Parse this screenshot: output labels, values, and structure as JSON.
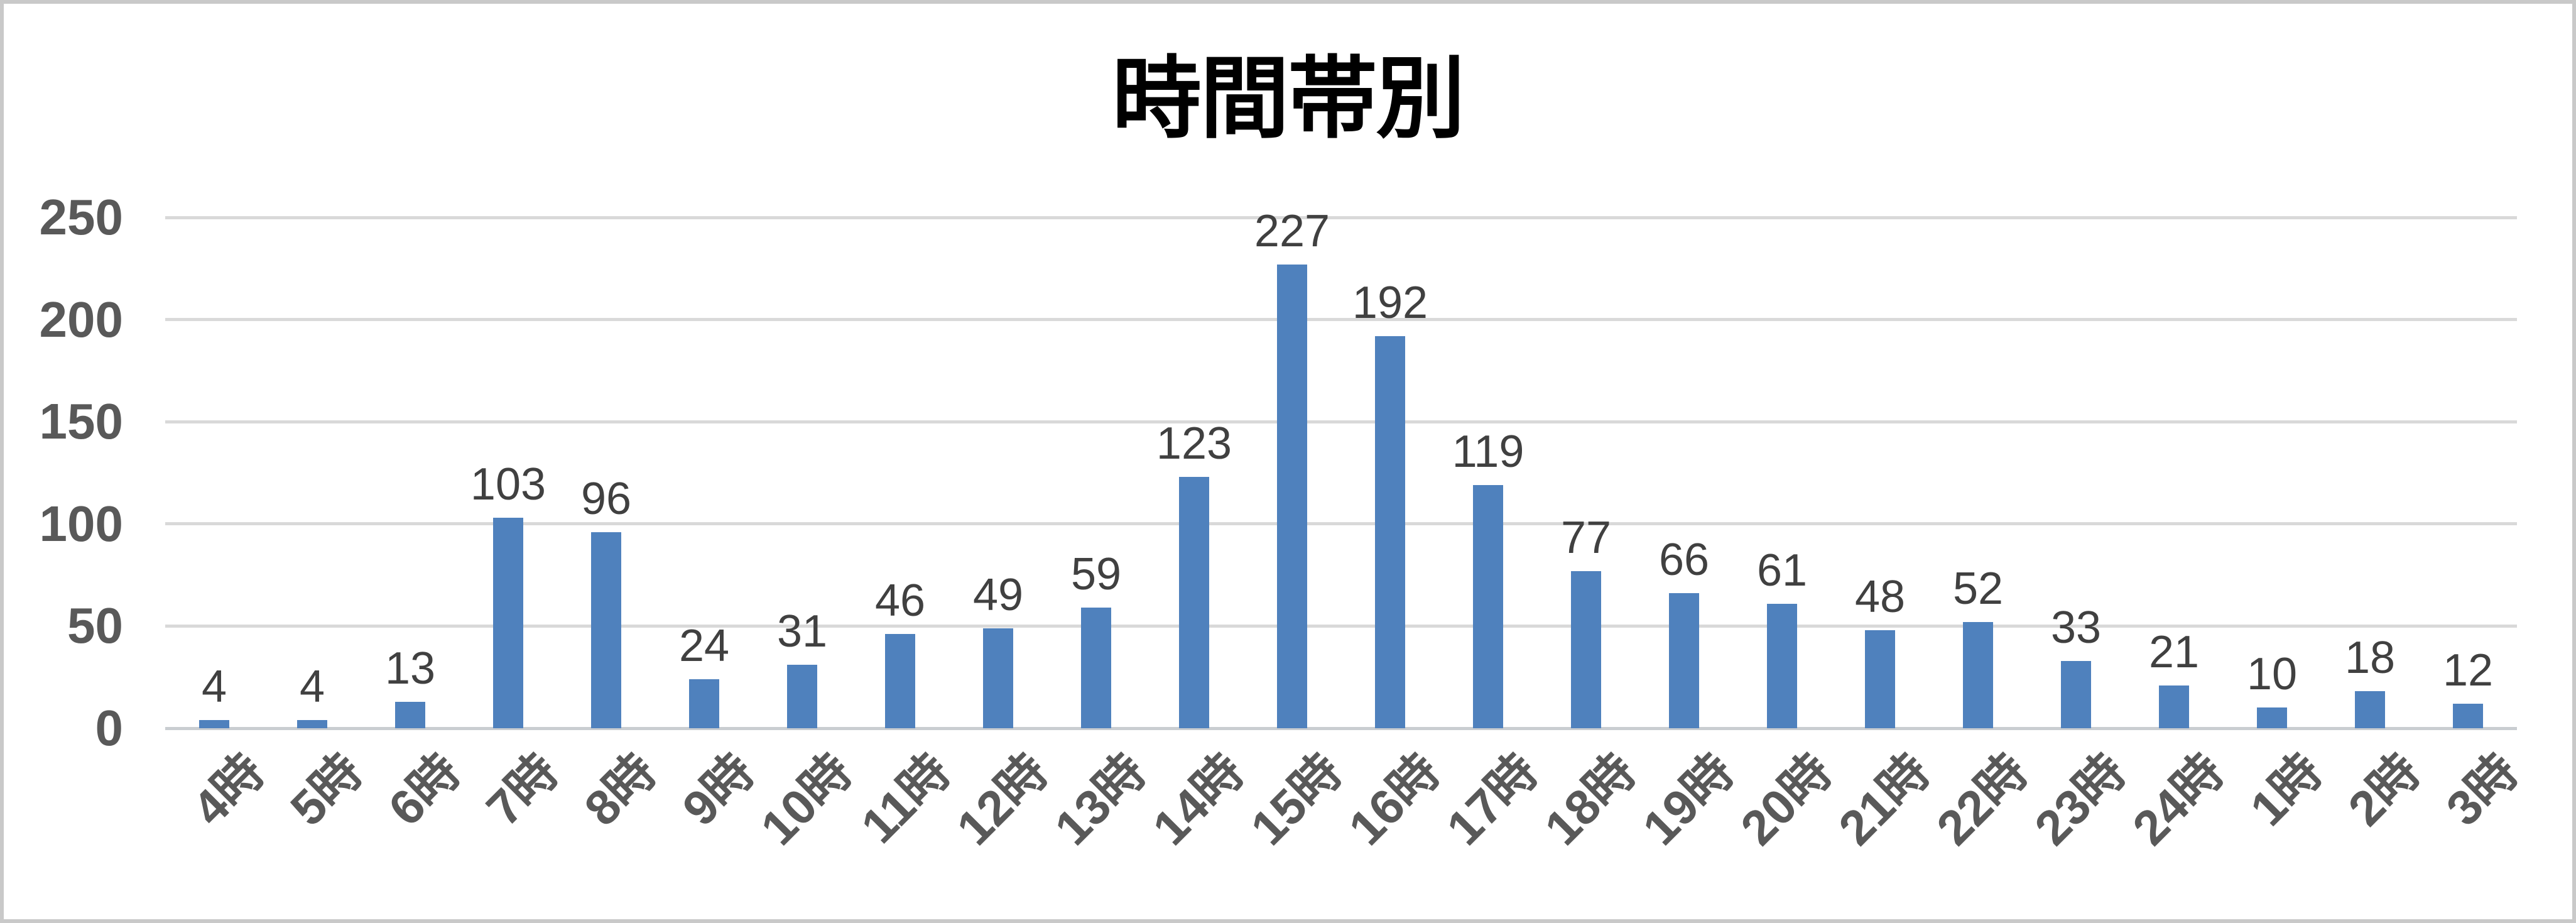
{
  "title": "時間帯別",
  "chart_data": {
    "type": "bar",
    "title": "時間帯別",
    "categories": [
      "4時",
      "5時",
      "6時",
      "7時",
      "8時",
      "9時",
      "10時",
      "11時",
      "12時",
      "13時",
      "14時",
      "15時",
      "16時",
      "17時",
      "18時",
      "19時",
      "20時",
      "21時",
      "22時",
      "23時",
      "24時",
      "1時",
      "2時",
      "3時"
    ],
    "values": [
      4,
      4,
      13,
      103,
      96,
      24,
      31,
      46,
      49,
      59,
      123,
      227,
      192,
      119,
      77,
      66,
      61,
      48,
      52,
      33,
      21,
      10,
      18,
      12
    ],
    "data_labels": [
      4,
      4,
      13,
      103,
      96,
      24,
      31,
      46,
      49,
      59,
      123,
      227,
      192,
      119,
      77,
      66,
      61,
      48,
      52,
      33,
      21,
      10,
      18,
      12
    ],
    "xlabel": "",
    "ylabel": "",
    "ylim": [
      0,
      250
    ],
    "yticks": [
      0,
      50,
      100,
      150,
      200,
      250
    ],
    "grid": true,
    "legend": "none",
    "series_color": "#4F81BD"
  },
  "colors": {
    "bar": "#4F81BD",
    "gridline": "#D9D9D9",
    "axis_line": "#C9CDD1",
    "tick_label": "#595959",
    "data_label": "#404040",
    "title": "#000000",
    "border": "#C9C9C9",
    "background": "#FFFFFF"
  }
}
